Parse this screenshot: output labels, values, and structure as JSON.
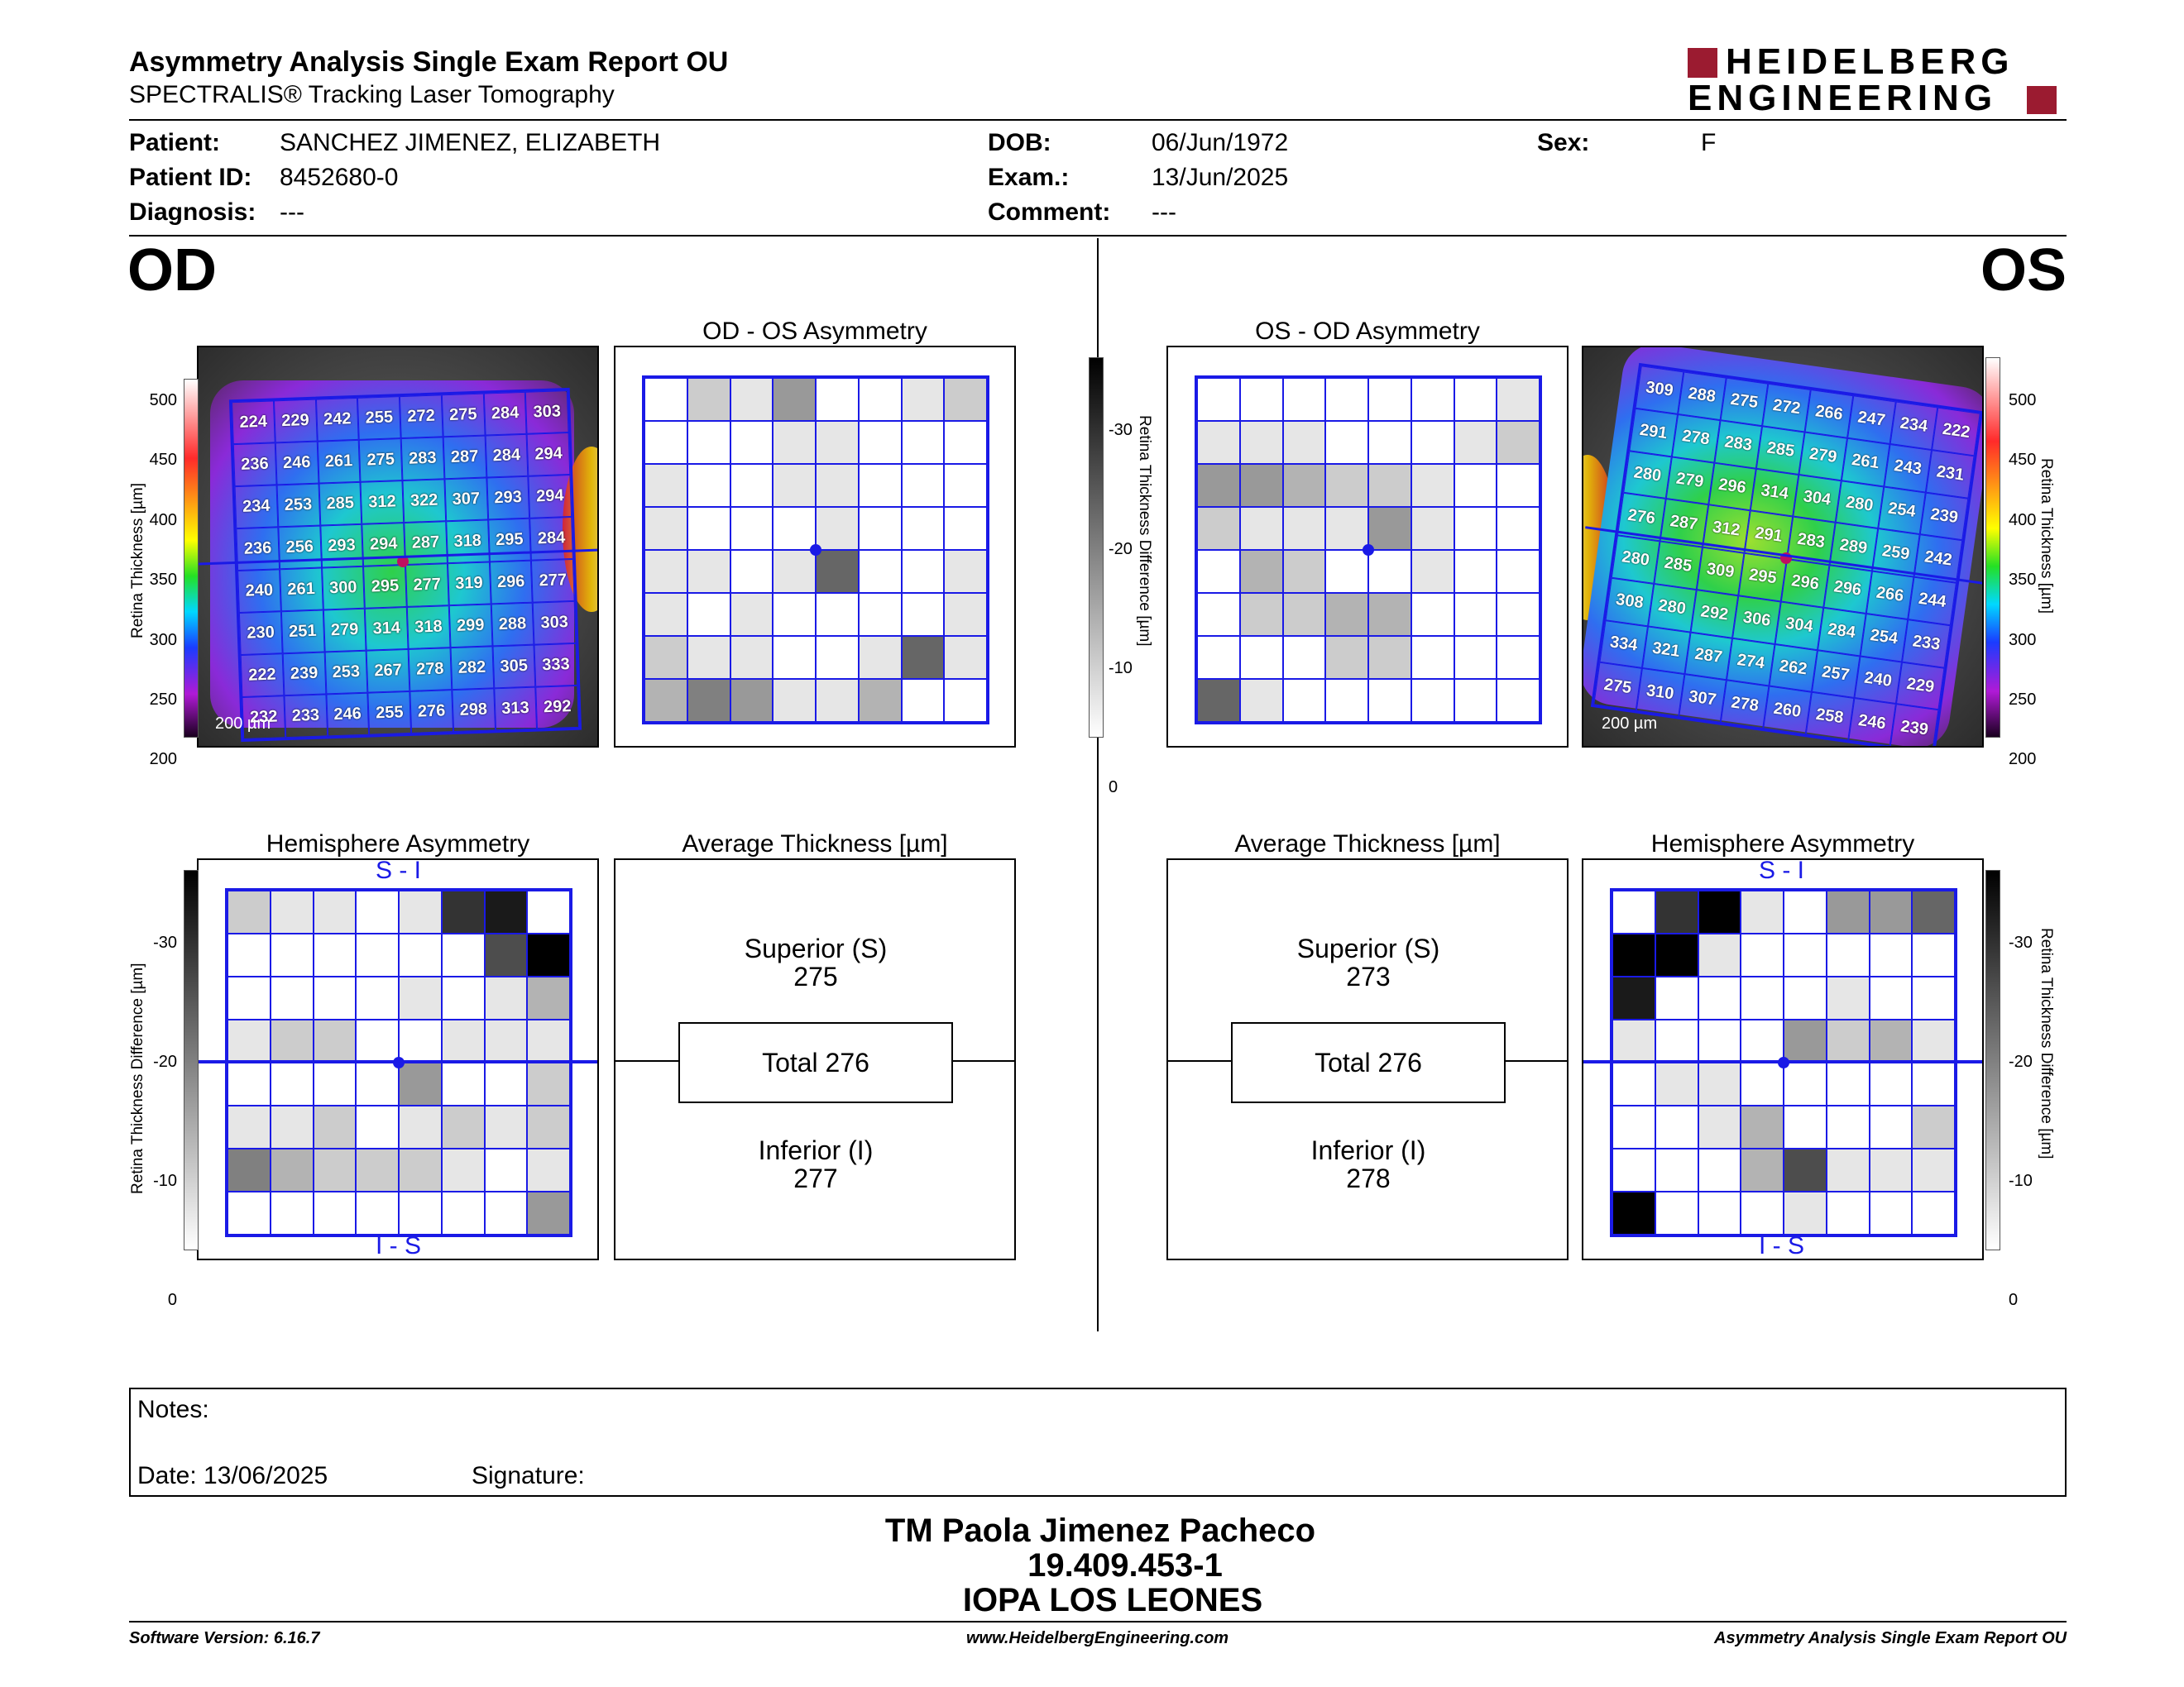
{
  "report": {
    "title": "Asymmetry Analysis Single Exam Report OU",
    "subtitle": "SPECTRALIS® Tracking Laser Tomography",
    "logo_line1": "HEIDELBERG",
    "logo_line2": "ENGINEERING"
  },
  "patient": {
    "patient_label": "Patient:",
    "patient_value": "SANCHEZ JIMENEZ, ELIZABETH",
    "id_label": "Patient ID:",
    "id_value": "8452680-0",
    "diag_label": "Diagnosis:",
    "diag_value": "---",
    "dob_label": "DOB:",
    "dob_value": "06/Jun/1972",
    "exam_label": "Exam.:",
    "exam_value": "13/Jun/2025",
    "comment_label": "Comment:",
    "comment_value": "---",
    "sex_label": "Sex:",
    "sex_value": "F"
  },
  "od": {
    "eye_label": "OD",
    "asym_title": "OD - OS Asymmetry",
    "hemi_title": "Hemisphere Asymmetry",
    "avg_title": "Average Thickness [µm]",
    "superior_label": "Superior (S)",
    "superior_value": "275",
    "total_label": "Total 276",
    "inferior_label": "Inferior (I)",
    "inferior_value": "277",
    "scale": "200 µm",
    "thickness": [
      [
        224,
        229,
        242,
        255,
        272,
        275,
        284,
        303
      ],
      [
        236,
        246,
        261,
        275,
        283,
        287,
        284,
        294
      ],
      [
        234,
        253,
        285,
        312,
        322,
        307,
        293,
        294
      ],
      [
        236,
        256,
        293,
        294,
        287,
        318,
        295,
        284
      ],
      [
        240,
        261,
        300,
        295,
        277,
        319,
        296,
        277
      ],
      [
        230,
        251,
        279,
        314,
        318,
        299,
        288,
        303
      ],
      [
        222,
        239,
        253,
        267,
        278,
        282,
        305,
        333
      ],
      [
        232,
        233,
        246,
        255,
        276,
        298,
        313,
        292
      ]
    ],
    "asym_gray": [
      [
        0,
        2,
        1,
        4,
        0,
        0,
        1,
        2
      ],
      [
        0,
        0,
        0,
        1,
        1,
        0,
        0,
        0
      ],
      [
        1,
        0,
        0,
        1,
        1,
        0,
        0,
        0
      ],
      [
        1,
        0,
        0,
        0,
        1,
        0,
        0,
        0
      ],
      [
        1,
        1,
        0,
        1,
        6,
        0,
        0,
        1
      ],
      [
        1,
        0,
        1,
        0,
        0,
        0,
        0,
        1
      ],
      [
        2,
        1,
        1,
        0,
        0,
        1,
        6,
        1
      ],
      [
        3,
        5,
        4,
        1,
        1,
        3,
        0,
        0
      ]
    ],
    "hemi_gray": [
      [
        2,
        1,
        1,
        0,
        1,
        8,
        9,
        0
      ],
      [
        0,
        0,
        0,
        0,
        0,
        0,
        7,
        10
      ],
      [
        0,
        0,
        0,
        0,
        1,
        0,
        1,
        3
      ],
      [
        1,
        2,
        2,
        0,
        0,
        1,
        1,
        1
      ],
      [
        0,
        0,
        0,
        0,
        4,
        0,
        0,
        2
      ],
      [
        1,
        1,
        2,
        0,
        1,
        2,
        1,
        2
      ],
      [
        5,
        3,
        2,
        2,
        2,
        1,
        0,
        1
      ],
      [
        0,
        0,
        0,
        0,
        0,
        0,
        0,
        4
      ]
    ]
  },
  "os": {
    "eye_label": "OS",
    "asym_title": "OS - OD Asymmetry",
    "hemi_title": "Hemisphere Asymmetry",
    "avg_title": "Average Thickness [µm]",
    "superior_label": "Superior (S)",
    "superior_value": "273",
    "total_label": "Total 276",
    "inferior_label": "Inferior (I)",
    "inferior_value": "278",
    "scale": "200 µm",
    "thickness": [
      [
        309,
        288,
        275,
        272,
        266,
        247,
        234,
        222
      ],
      [
        291,
        278,
        283,
        285,
        279,
        261,
        243,
        231
      ],
      [
        280,
        279,
        296,
        314,
        304,
        280,
        254,
        239
      ],
      [
        276,
        287,
        312,
        291,
        283,
        289,
        259,
        242
      ],
      [
        280,
        285,
        309,
        295,
        296,
        296,
        266,
        244
      ],
      [
        308,
        280,
        292,
        306,
        304,
        284,
        254,
        233
      ],
      [
        334,
        321,
        287,
        274,
        262,
        257,
        240,
        229
      ],
      [
        275,
        310,
        307,
        278,
        260,
        258,
        246,
        239
      ]
    ],
    "asym_gray": [
      [
        0,
        0,
        0,
        0,
        0,
        0,
        0,
        1
      ],
      [
        1,
        1,
        1,
        0,
        0,
        0,
        1,
        2
      ],
      [
        4,
        4,
        3,
        2,
        2,
        1,
        0,
        0
      ],
      [
        2,
        1,
        1,
        1,
        4,
        1,
        0,
        0
      ],
      [
        0,
        3,
        2,
        0,
        0,
        1,
        0,
        0
      ],
      [
        0,
        2,
        2,
        3,
        3,
        0,
        0,
        0
      ],
      [
        0,
        0,
        0,
        2,
        2,
        0,
        0,
        0
      ],
      [
        6,
        1,
        0,
        0,
        0,
        0,
        0,
        0
      ]
    ],
    "hemi_gray": [
      [
        0,
        8,
        10,
        1,
        0,
        4,
        4,
        6
      ],
      [
        10,
        10,
        1,
        0,
        0,
        0,
        0,
        0
      ],
      [
        9,
        0,
        0,
        0,
        0,
        1,
        0,
        0
      ],
      [
        1,
        0,
        0,
        0,
        4,
        2,
        3,
        1
      ],
      [
        0,
        1,
        1,
        0,
        0,
        0,
        0,
        0
      ],
      [
        0,
        0,
        1,
        3,
        0,
        0,
        0,
        2
      ],
      [
        0,
        0,
        0,
        3,
        7,
        1,
        1,
        1
      ],
      [
        10,
        0,
        0,
        0,
        1,
        0,
        0,
        0
      ]
    ]
  },
  "axes": {
    "thickness_label": "Retina Thickness [µm]",
    "thickness_ticks": [
      "500",
      "450",
      "400",
      "350",
      "300",
      "250",
      "200"
    ],
    "diff_label": "Retina Thickness Difference [µm]",
    "diff_ticks": [
      "-30",
      "-20",
      "-10",
      "0"
    ],
    "si_label": "S - I",
    "is_label": "I - S"
  },
  "notes": {
    "notes_label": "Notes:",
    "date_label": "Date: 13/06/2025",
    "signature_label": "Signature:"
  },
  "stamp": {
    "line1": "TM Paola Jimenez Pacheco",
    "line2": "19.409.453-1",
    "line3": "IOPA LOS LEONES"
  },
  "footer": {
    "left": "Software Version: 6.16.7",
    "center": "www.HeidelbergEngineering.com",
    "right": "Asymmetry Analysis Single Exam Report OU"
  }
}
